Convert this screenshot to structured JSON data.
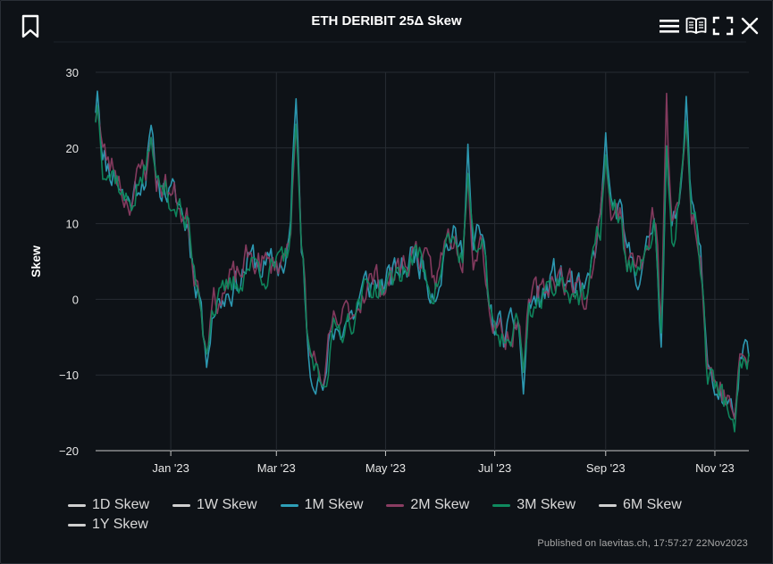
{
  "header": {
    "title": "ETH DERIBIT 25Δ Skew",
    "icons": [
      "bookmark-icon",
      "menu-icon",
      "book-icon",
      "fullscreen-icon",
      "close-icon"
    ]
  },
  "colors": {
    "background": "#0e1217",
    "grid": "#272c33",
    "1M": "#2e9fb8",
    "2M": "#8a3d62",
    "3M": "#0f8a5f",
    "legend_grey": "#cfcfcf"
  },
  "chart_data": {
    "type": "line",
    "title": "ETH DERIBIT 25Δ Skew",
    "ylabel": "Skew",
    "xlabel": "",
    "ylim": [
      -20,
      30
    ],
    "yticks": [
      "30",
      "20",
      "10",
      "0",
      "−10",
      "−20"
    ],
    "xlim": [
      "2022-11-20",
      "2023-11-20"
    ],
    "xticks": [
      {
        "date": "2023-01-01",
        "label": "Jan '23"
      },
      {
        "date": "2023-03-01",
        "label": "Mar '23"
      },
      {
        "date": "2023-05-01",
        "label": "May '23"
      },
      {
        "date": "2023-07-01",
        "label": "Jul '23"
      },
      {
        "date": "2023-09-01",
        "label": "Sep '23"
      },
      {
        "date": "2023-11-01",
        "label": "Nov '23"
      }
    ],
    "grid": true,
    "legend_position": "bottom",
    "keypoints": [
      [
        "2022-11-20",
        20
      ],
      [
        "2022-11-30",
        17
      ],
      [
        "2022-12-08",
        13
      ],
      [
        "2022-12-18",
        17
      ],
      [
        "2022-12-27",
        15
      ],
      [
        "2023-01-04",
        13
      ],
      [
        "2023-01-10",
        10
      ],
      [
        "2023-01-15",
        3
      ],
      [
        "2023-01-20",
        -2
      ],
      [
        "2023-01-28",
        0
      ],
      [
        "2023-02-05",
        2
      ],
      [
        "2023-02-15",
        5
      ],
      [
        "2023-02-25",
        4
      ],
      [
        "2023-03-05",
        5
      ],
      [
        "2023-03-12",
        13
      ],
      [
        "2023-03-15",
        5
      ],
      [
        "2023-03-20",
        -8
      ],
      [
        "2023-03-27",
        -10
      ],
      [
        "2023-04-03",
        -4
      ],
      [
        "2023-04-12",
        -2
      ],
      [
        "2023-04-22",
        2
      ],
      [
        "2023-05-02",
        2
      ],
      [
        "2023-05-10",
        4
      ],
      [
        "2023-05-18",
        6
      ],
      [
        "2023-05-28",
        2
      ],
      [
        "2023-06-06",
        8
      ],
      [
        "2023-06-16",
        5
      ],
      [
        "2023-06-23",
        8
      ],
      [
        "2023-06-30",
        -3
      ],
      [
        "2023-07-08",
        -5
      ],
      [
        "2023-07-18",
        -1
      ],
      [
        "2023-07-26",
        0
      ],
      [
        "2023-08-05",
        3
      ],
      [
        "2023-08-12",
        2
      ],
      [
        "2023-08-20",
        0
      ],
      [
        "2023-08-30",
        10
      ],
      [
        "2023-09-07",
        12
      ],
      [
        "2023-09-14",
        5
      ],
      [
        "2023-09-22",
        4
      ],
      [
        "2023-09-28",
        10
      ],
      [
        "2023-10-03",
        -5
      ],
      [
        "2023-10-08",
        8
      ],
      [
        "2023-10-13",
        15
      ],
      [
        "2023-10-20",
        12
      ],
      [
        "2023-10-24",
        5
      ],
      [
        "2023-10-28",
        -9
      ],
      [
        "2023-11-03",
        -12
      ],
      [
        "2023-11-09",
        -14
      ],
      [
        "2023-11-14",
        -9
      ],
      [
        "2023-11-20",
        -8
      ]
    ],
    "spikes": [
      {
        "date": "2022-11-21",
        "value": 27.5,
        "series": "1M Skew"
      },
      {
        "date": "2022-12-21",
        "value": 23,
        "series": "1M Skew"
      },
      {
        "date": "2023-01-21",
        "value": -9,
        "series": "1M Skew"
      },
      {
        "date": "2023-03-12",
        "value": 26.5,
        "series": "1M Skew"
      },
      {
        "date": "2023-03-27",
        "value": -12,
        "series": "1M Skew"
      },
      {
        "date": "2023-06-16",
        "value": 20.5,
        "series": "1M Skew"
      },
      {
        "date": "2023-07-17",
        "value": -12.5,
        "series": "1M Skew"
      },
      {
        "date": "2023-09-01",
        "value": 22,
        "series": "1M Skew"
      },
      {
        "date": "2023-10-05",
        "value": 27.2,
        "series": "2M Skew"
      },
      {
        "date": "2023-10-16",
        "value": 26.8,
        "series": "1M Skew"
      },
      {
        "date": "2023-11-12",
        "value": -17.5,
        "series": "3M Skew"
      }
    ],
    "series": [
      {
        "name": "1D Skew",
        "color": "#cfcfcf",
        "visible": false
      },
      {
        "name": "1W Skew",
        "color": "#cfcfcf",
        "visible": false
      },
      {
        "name": "1M Skew",
        "color": "#2e9fb8",
        "visible": true,
        "amp": 1.0,
        "offset": 0.0,
        "seed": 11
      },
      {
        "name": "2M Skew",
        "color": "#8a3d62",
        "visible": true,
        "amp": 0.9,
        "offset": 0.4,
        "seed": 23
      },
      {
        "name": "3M Skew",
        "color": "#0f8a5f",
        "visible": true,
        "amp": 0.82,
        "offset": -0.3,
        "seed": 37
      },
      {
        "name": "6M Skew",
        "color": "#cfcfcf",
        "visible": false
      },
      {
        "name": "1Y Skew",
        "color": "#cfcfcf",
        "visible": false
      }
    ]
  },
  "footer": {
    "credit": "Published on laevitas.ch, 17:57:27 22Nov2023"
  }
}
